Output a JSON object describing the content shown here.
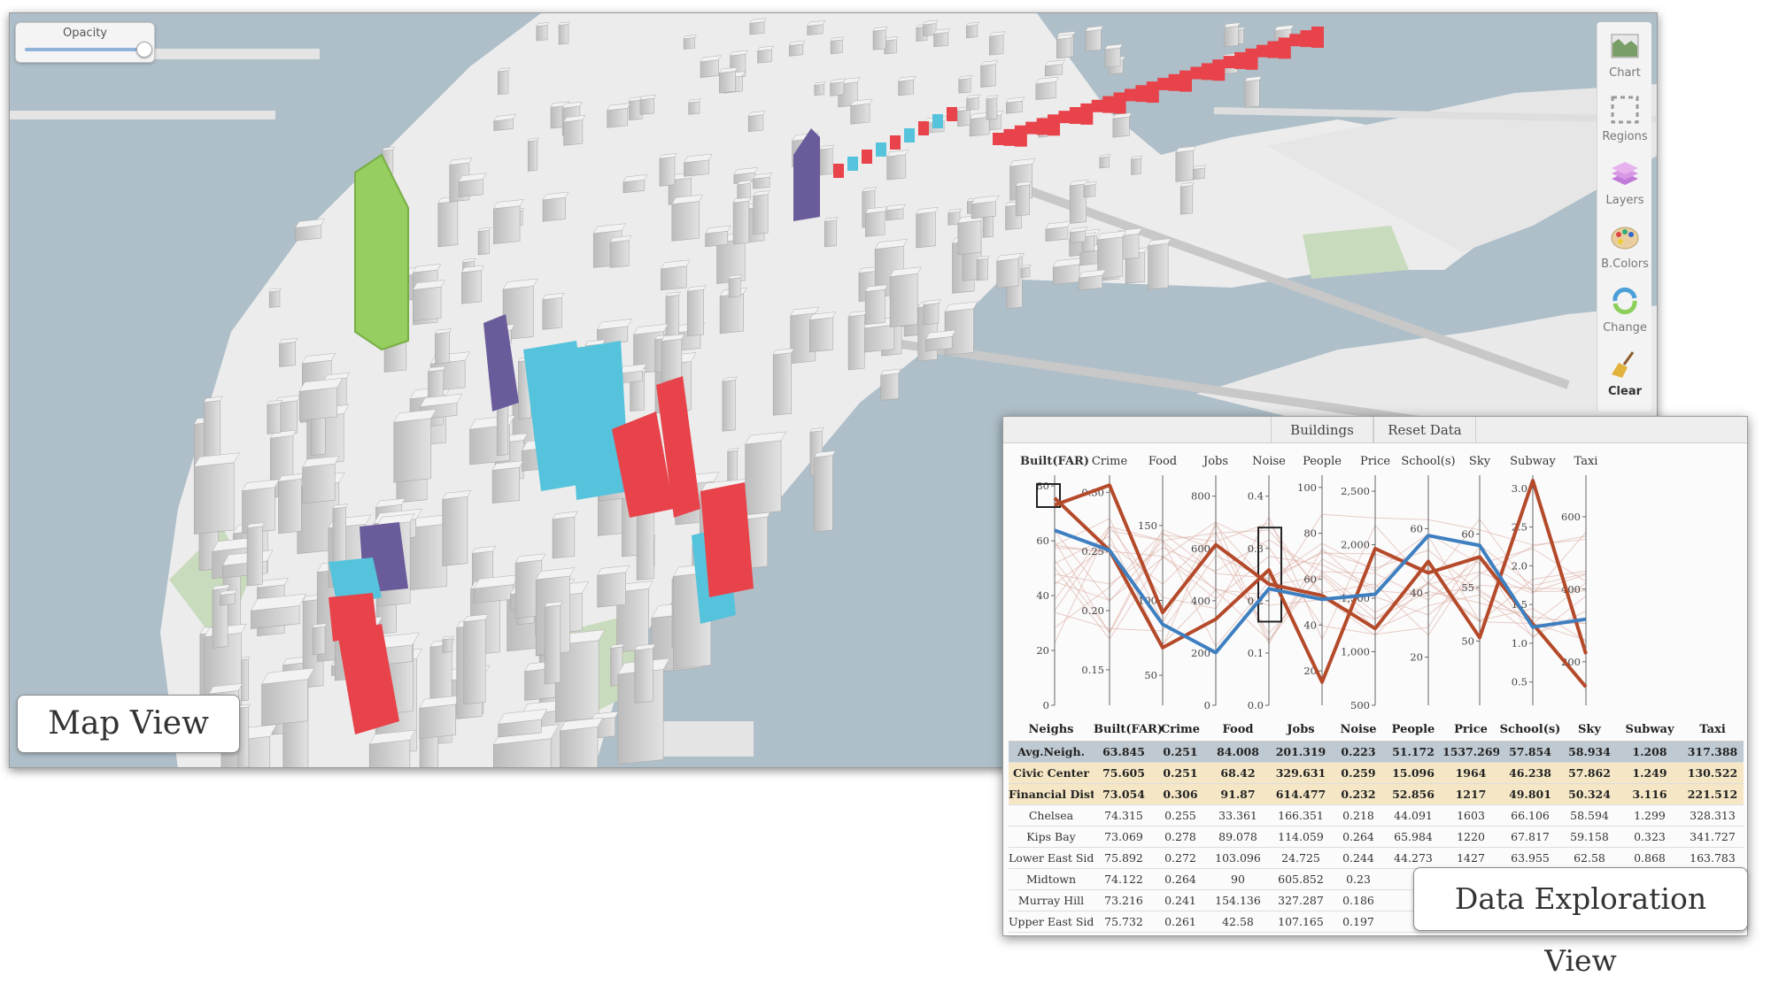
{
  "map_view": {
    "label": "Map View",
    "opacity_label": "Opacity",
    "opacity_value": 1.0,
    "toolbar": [
      {
        "name": "chart",
        "label": "Chart",
        "icon": "area-chart-icon"
      },
      {
        "name": "regions",
        "label": "Regions",
        "icon": "dashed-square-icon"
      },
      {
        "name": "layers",
        "label": "Layers",
        "icon": "layers-icon"
      },
      {
        "name": "bcolors",
        "label": "B.Colors",
        "icon": "palette-icon"
      },
      {
        "name": "change",
        "label": "Change",
        "icon": "cycle-arrows-icon"
      },
      {
        "name": "clear",
        "label": "Clear",
        "icon": "broom-icon"
      }
    ],
    "colors": {
      "water": "#aebfc9",
      "land": "#efefef",
      "park": "#c9dbbd",
      "building": "#d2d2d2",
      "red": "#e8434a",
      "cyan": "#55c3dc",
      "purple": "#6a5c9a",
      "green": "#96cf5f"
    }
  },
  "data_view": {
    "label": "Data Exploration View",
    "tabs": [
      "Buildings",
      "Reset Data"
    ],
    "chart_data": {
      "type": "parallel-coordinates",
      "axes": [
        {
          "name": "Built(FAR)",
          "ticks": [
            "0",
            "20",
            "40",
            "60",
            "80"
          ]
        },
        {
          "name": "Crime",
          "ticks": [
            "0.15",
            "0.20",
            "0.25",
            "0.30"
          ]
        },
        {
          "name": "Food",
          "ticks": [
            "50",
            "100",
            "150"
          ]
        },
        {
          "name": "Jobs",
          "ticks": [
            "0",
            "200",
            "400",
            "600",
            "800"
          ]
        },
        {
          "name": "Noise",
          "ticks": [
            "0.0",
            "0.1",
            "0.2",
            "0.3",
            "0.4"
          ]
        },
        {
          "name": "People",
          "ticks": [
            "20",
            "40",
            "60",
            "80",
            "100"
          ]
        },
        {
          "name": "Price",
          "ticks": [
            "500",
            "1,000",
            "1,500",
            "2,000",
            "2,500"
          ]
        },
        {
          "name": "School(s)",
          "ticks": [
            "20",
            "40",
            "60"
          ]
        },
        {
          "name": "Sky",
          "ticks": [
            "50",
            "55",
            "60"
          ]
        },
        {
          "name": "Subway",
          "ticks": [
            "0.5",
            "1.0",
            "1.5",
            "2.0",
            "2.5",
            "3.0"
          ]
        },
        {
          "name": "Taxi",
          "ticks": [
            "200",
            "400",
            "600"
          ]
        }
      ],
      "series": [
        {
          "name": "Avg.Neigh.",
          "color": "#3d7fc0",
          "values": [
            63.845,
            0.251,
            84.008,
            201.319,
            0.223,
            51.172,
            1537.269,
            57.854,
            58.934,
            1.208,
            317.388
          ]
        },
        {
          "name": "Civic Center",
          "color": "#b44a2a",
          "values": [
            75.605,
            0.251,
            68.42,
            329.631,
            0.259,
            15.096,
            1964,
            46.238,
            57.862,
            1.249,
            130.522
          ]
        },
        {
          "name": "Financial District",
          "color": "#b44a2a",
          "values": [
            73.054,
            0.306,
            91.87,
            614.477,
            0.232,
            52.856,
            1217,
            49.801,
            50.324,
            3.116,
            221.512
          ]
        }
      ],
      "background_lines_color": "#d9a69a"
    },
    "table": {
      "headers": [
        "Neighs",
        "Built(FAR)",
        "Crime",
        "Food",
        "Jobs",
        "Noise",
        "People",
        "Price",
        "School(s)",
        "Sky",
        "Subway",
        "Taxi"
      ],
      "rows": [
        {
          "kind": "avg",
          "cells": [
            "Avg.Neigh.",
            "63.845",
            "0.251",
            "84.008",
            "201.319",
            "0.223",
            "51.172",
            "1537.269",
            "57.854",
            "58.934",
            "1.208",
            "317.388"
          ]
        },
        {
          "kind": "sel",
          "cells": [
            "Civic Center",
            "75.605",
            "0.251",
            "68.42",
            "329.631",
            "0.259",
            "15.096",
            "1964",
            "46.238",
            "57.862",
            "1.249",
            "130.522"
          ]
        },
        {
          "kind": "sel",
          "cells": [
            "Financial District",
            "73.054",
            "0.306",
            "91.87",
            "614.477",
            "0.232",
            "52.856",
            "1217",
            "49.801",
            "50.324",
            "3.116",
            "221.512"
          ]
        },
        {
          "kind": "row",
          "cells": [
            "Chelsea",
            "74.315",
            "0.255",
            "33.361",
            "166.351",
            "0.218",
            "44.091",
            "1603",
            "66.106",
            "58.594",
            "1.299",
            "328.313"
          ]
        },
        {
          "kind": "row",
          "cells": [
            "Kips Bay",
            "73.069",
            "0.278",
            "89.078",
            "114.059",
            "0.264",
            "65.984",
            "1220",
            "67.817",
            "59.158",
            "0.323",
            "341.727"
          ]
        },
        {
          "kind": "row",
          "cells": [
            "Lower East Side",
            "75.892",
            "0.272",
            "103.096",
            "24.725",
            "0.244",
            "44.273",
            "1427",
            "63.955",
            "62.58",
            "0.868",
            "163.783"
          ]
        },
        {
          "kind": "row",
          "cells": [
            "Midtown",
            "74.122",
            "0.264",
            "90",
            "605.852",
            "0.23",
            "",
            "",
            "",
            "",
            "",
            ""
          ]
        },
        {
          "kind": "row",
          "cells": [
            "Murray Hill",
            "73.216",
            "0.241",
            "154.136",
            "327.287",
            "0.186",
            "",
            "",
            "",
            "",
            "",
            ""
          ]
        },
        {
          "kind": "row",
          "cells": [
            "Upper East Side",
            "75.732",
            "0.261",
            "42.58",
            "107.165",
            "0.197",
            "",
            "",
            "",
            "",
            "",
            ""
          ]
        }
      ]
    }
  }
}
